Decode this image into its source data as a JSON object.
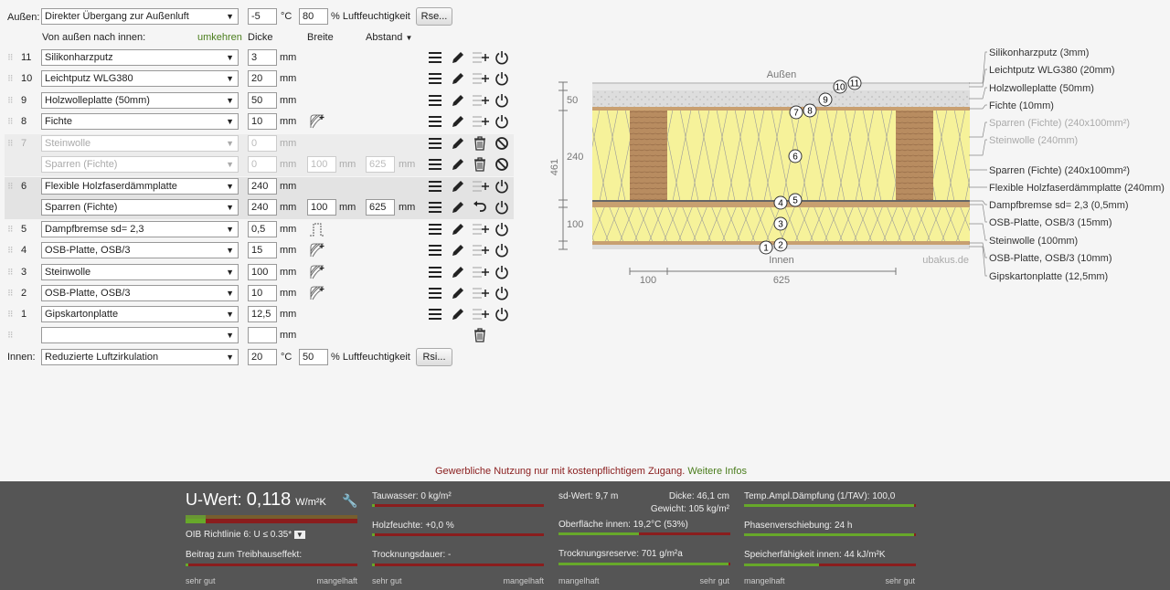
{
  "outside": {
    "label": "Außen:",
    "climate": "Direkter Übergang zur Außenluft",
    "temp": "-5",
    "temp_unit": "°C",
    "humidity": "80",
    "humidity_unit": "% Luftfeuchtigkeit",
    "button": "Rse..."
  },
  "inside": {
    "label": "Innen:",
    "climate": "Reduzierte Luftzirkulation",
    "temp": "20",
    "temp_unit": "°C",
    "humidity": "50",
    "humidity_unit": "% Luftfeuchtigkeit",
    "button": "Rsi..."
  },
  "header": {
    "direction": "Von außen nach innen:",
    "reverse": "umkehren",
    "thickness": "Dicke",
    "width": "Breite",
    "spacing": "Abstand"
  },
  "layers": [
    {
      "num": "11",
      "name": "Silikonharzputz",
      "thick": "3",
      "unit": "mm"
    },
    {
      "num": "10",
      "name": "Leichtputz WLG380",
      "thick": "20",
      "unit": "mm"
    },
    {
      "num": "9",
      "name": "Holzwolleplatte (50mm)",
      "thick": "50",
      "unit": "mm"
    },
    {
      "num": "8",
      "name": "Fichte",
      "thick": "10",
      "unit": "mm"
    },
    {
      "num": "7",
      "name": "Steinwolle",
      "thick": "0",
      "unit": "mm"
    },
    {
      "num": "",
      "name": "Sparren (Fichte)",
      "thick": "0",
      "unit": "mm",
      "width": "100",
      "width_unit": "mm",
      "spacing": "625",
      "spacing_unit": "mm"
    },
    {
      "num": "6",
      "name": "Flexible Holzfaserdämmplatte",
      "thick": "240",
      "unit": "mm"
    },
    {
      "num": "",
      "name": "Sparren (Fichte)",
      "thick": "240",
      "unit": "mm",
      "width": "100",
      "width_unit": "mm",
      "spacing": "625",
      "spacing_unit": "mm"
    },
    {
      "num": "5",
      "name": "Dampfbremse sd= 2,3",
      "thick": "0,5",
      "unit": "mm"
    },
    {
      "num": "4",
      "name": "OSB-Platte, OSB/3",
      "thick": "15",
      "unit": "mm"
    },
    {
      "num": "3",
      "name": "Steinwolle",
      "thick": "100",
      "unit": "mm"
    },
    {
      "num": "2",
      "name": "OSB-Platte, OSB/3",
      "thick": "10",
      "unit": "mm"
    },
    {
      "num": "1",
      "name": "Gipskartonplatte",
      "thick": "12,5",
      "unit": "mm"
    },
    {
      "num": "",
      "name": "",
      "thick": "",
      "unit": "mm"
    }
  ],
  "diagram": {
    "outside": "Außen",
    "inside": "Innen",
    "watermark": "ubakus.de",
    "dim_total": "461",
    "dim_50": "50",
    "dim_240": "240",
    "dim_100": "100",
    "dim_w100": "100",
    "dim_w625": "625",
    "legend": [
      {
        "text": "Silikonharzputz (3mm)",
        "grey": false
      },
      {
        "text": "Leichtputz WLG380 (20mm)",
        "grey": false
      },
      {
        "text": "Holzwolleplatte (50mm)",
        "grey": false
      },
      {
        "text": "Fichte (10mm)",
        "grey": false
      },
      {
        "text": "Sparren (Fichte) (240x100mm²)",
        "grey": true
      },
      {
        "text": "Steinwolle (240mm)",
        "grey": true
      },
      {
        "text": "Sparren (Fichte) (240x100mm²)",
        "grey": false
      },
      {
        "text": "Flexible Holzfaserdämmplatte (240mm)",
        "grey": false
      },
      {
        "text": "Dampfbremse sd= 2,3 (0,5mm)",
        "grey": false
      },
      {
        "text": "OSB-Platte, OSB/3 (15mm)",
        "grey": false
      },
      {
        "text": "Steinwolle (100mm)",
        "grey": false
      },
      {
        "text": "OSB-Platte, OSB/3 (10mm)",
        "grey": false
      },
      {
        "text": "Gipskartonplatte (12,5mm)",
        "grey": false
      }
    ]
  },
  "notice": {
    "text": "Gewerbliche Nutzung nur mit kostenpflichtigem Zugang.",
    "link": "Weitere Infos"
  },
  "results": {
    "uwert_label": "U-Wert:",
    "uwert_value": "0,118",
    "uwert_unit": "W/m²K",
    "oib": "OIB Richtlinie 6: U ≤ 0.35*",
    "treibhaus": "Beitrag zum Treibhauseffekt:",
    "sehr_gut": "sehr gut",
    "mangelhaft": "mangelhaft",
    "tauwasser": "Tauwasser: 0 kg/m²",
    "holzfeuchte": "Holzfeuchte: +0,0 %",
    "trocknungsdauer": "Trocknungsdauer: -",
    "sdwert": "sd-Wert: 9,7 m",
    "dicke": "Dicke: 46,1 cm",
    "gewicht": "Gewicht: 105 kg/m²",
    "oberflaeche": "Oberfläche innen: 19,2°C (53%)",
    "trocknungsreserve": "Trocknungsreserve: 701 g/m²a",
    "tav": "Temp.Ampl.Dämpfung (1/TAV): 100,0",
    "phasen": "Phasenverschiebung: 24 h",
    "speicher": "Speicherfähigkeit innen: 44 kJ/m²K",
    "colors": {
      "good": "#67a82a",
      "bad": "#8a1d1d"
    }
  }
}
